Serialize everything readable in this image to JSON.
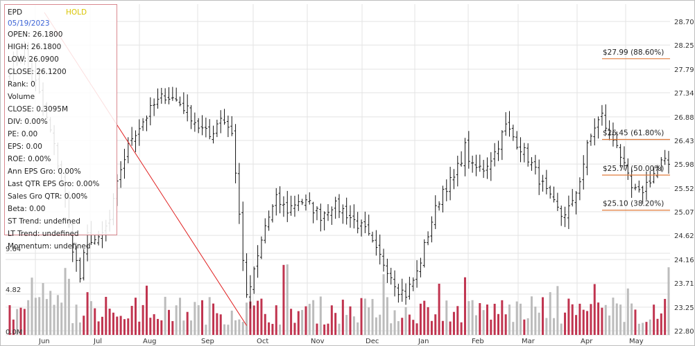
{
  "info": {
    "symbol": "EPD",
    "rating": "HOLD",
    "date": "05/19/2023",
    "open": "OPEN: 26.1800",
    "high": "HIGH: 26.1800",
    "low": "LOW: 26.0900",
    "close": "CLOSE: 26.1200",
    "rank": "Rank: 0",
    "volume_label": "Volume",
    "volume_close": "CLOSE: 0.3095M",
    "div": "DIV: 0.00%",
    "pe": "PE: 0.00",
    "eps": "EPS: 0.00",
    "roe": "ROE: 0.00%",
    "ann_eps": "Ann EPS Gro: 0.00%",
    "last_qtr": "Last QTR EPS Gro: 0.00%",
    "sales_gro": "Sales Gro QTR: 0.00%",
    "beta": "Beta: 0.00",
    "st_trend": "ST Trend: undefined",
    "lt_trend": "LT Trend: undefined",
    "momentum": "Momentum: undefined"
  },
  "colors": {
    "up_volume": "#c0344f",
    "down_volume": "#bcbcbc",
    "candle": "#111111",
    "fib_line": "#e07a3a",
    "trend_line": "#e02020",
    "grid": "#e3e3e3"
  },
  "chart_data": {
    "type": "candlestick",
    "ticker": "EPD",
    "grid": true,
    "x_tick_labels": [
      "Jun",
      "Jul",
      "Aug",
      "Sep",
      "Oct",
      "Nov",
      "Dec",
      "Jan",
      "Feb",
      "Mar",
      "Apr",
      "May"
    ],
    "price_axis": {
      "ticks": [
        "28.70",
        "28.25",
        "27.79",
        "27.34",
        "26.88",
        "26.43",
        "25.98",
        "25.52",
        "25.07",
        "24.62",
        "24.16",
        "23.71",
        "23.25",
        "22.80"
      ],
      "range": [
        22.8,
        28.7
      ]
    },
    "volume_axis": {
      "ticks": [
        "9.64",
        "4.82",
        "0.0M"
      ],
      "range": [
        0,
        9.64
      ]
    },
    "fibonacci_levels": [
      {
        "label": "$27.99 (88.60%)",
        "value": 27.99
      },
      {
        "label": "$26.45 (61.80%)",
        "value": 26.45
      },
      {
        "label": "$25.77 (50.00%)",
        "value": 25.77
      },
      {
        "label": "$25.10 (38.20%)",
        "value": 25.1
      }
    ],
    "price_path": [
      [
        0,
        27.8
      ],
      [
        4,
        28.2
      ],
      [
        8,
        27.3
      ],
      [
        11,
        26.6
      ],
      [
        14,
        25.7
      ],
      [
        17,
        24.4
      ],
      [
        19,
        23.8
      ],
      [
        21,
        24.6
      ],
      [
        24,
        24.5
      ],
      [
        27,
        24.9
      ],
      [
        30,
        25.9
      ],
      [
        33,
        26.5
      ],
      [
        36,
        26.8
      ],
      [
        39,
        27.1
      ],
      [
        42,
        27.3
      ],
      [
        45,
        27.2
      ],
      [
        48,
        27.0
      ],
      [
        51,
        26.7
      ],
      [
        54,
        26.5
      ],
      [
        57,
        26.9
      ],
      [
        60,
        26.6
      ],
      [
        62,
        25.0
      ],
      [
        64,
        23.4
      ],
      [
        66,
        23.9
      ],
      [
        69,
        24.8
      ],
      [
        72,
        25.3
      ],
      [
        75,
        25.1
      ],
      [
        78,
        25.3
      ],
      [
        81,
        25.2
      ],
      [
        84,
        25.0
      ],
      [
        87,
        25.2
      ],
      [
        90,
        25.1
      ],
      [
        93,
        24.9
      ],
      [
        96,
        24.7
      ],
      [
        99,
        24.3
      ],
      [
        102,
        24.0
      ],
      [
        105,
        23.6
      ],
      [
        107,
        23.5
      ],
      [
        110,
        23.9
      ],
      [
        112,
        24.4
      ],
      [
        114,
        24.9
      ],
      [
        117,
        25.5
      ],
      [
        120,
        25.7
      ],
      [
        123,
        26.3
      ],
      [
        125,
        25.9
      ],
      [
        128,
        25.9
      ],
      [
        131,
        26.2
      ],
      [
        134,
        26.7
      ],
      [
        137,
        26.4
      ],
      [
        140,
        26.1
      ],
      [
        143,
        25.7
      ],
      [
        146,
        25.3
      ],
      [
        149,
        25.0
      ],
      [
        152,
        25.2
      ],
      [
        154,
        25.7
      ],
      [
        156,
        26.3
      ],
      [
        158,
        26.7
      ],
      [
        160,
        26.9
      ],
      [
        162,
        26.5
      ],
      [
        164,
        26.4
      ],
      [
        166,
        25.9
      ],
      [
        168,
        25.5
      ],
      [
        170,
        25.4
      ],
      [
        172,
        25.6
      ],
      [
        174,
        25.8
      ],
      [
        176,
        26.0
      ],
      [
        178,
        25.98
      ]
    ],
    "trend_line": {
      "start": [
        0,
        29.5
      ],
      "end": [
        64,
        22.9
      ]
    }
  }
}
